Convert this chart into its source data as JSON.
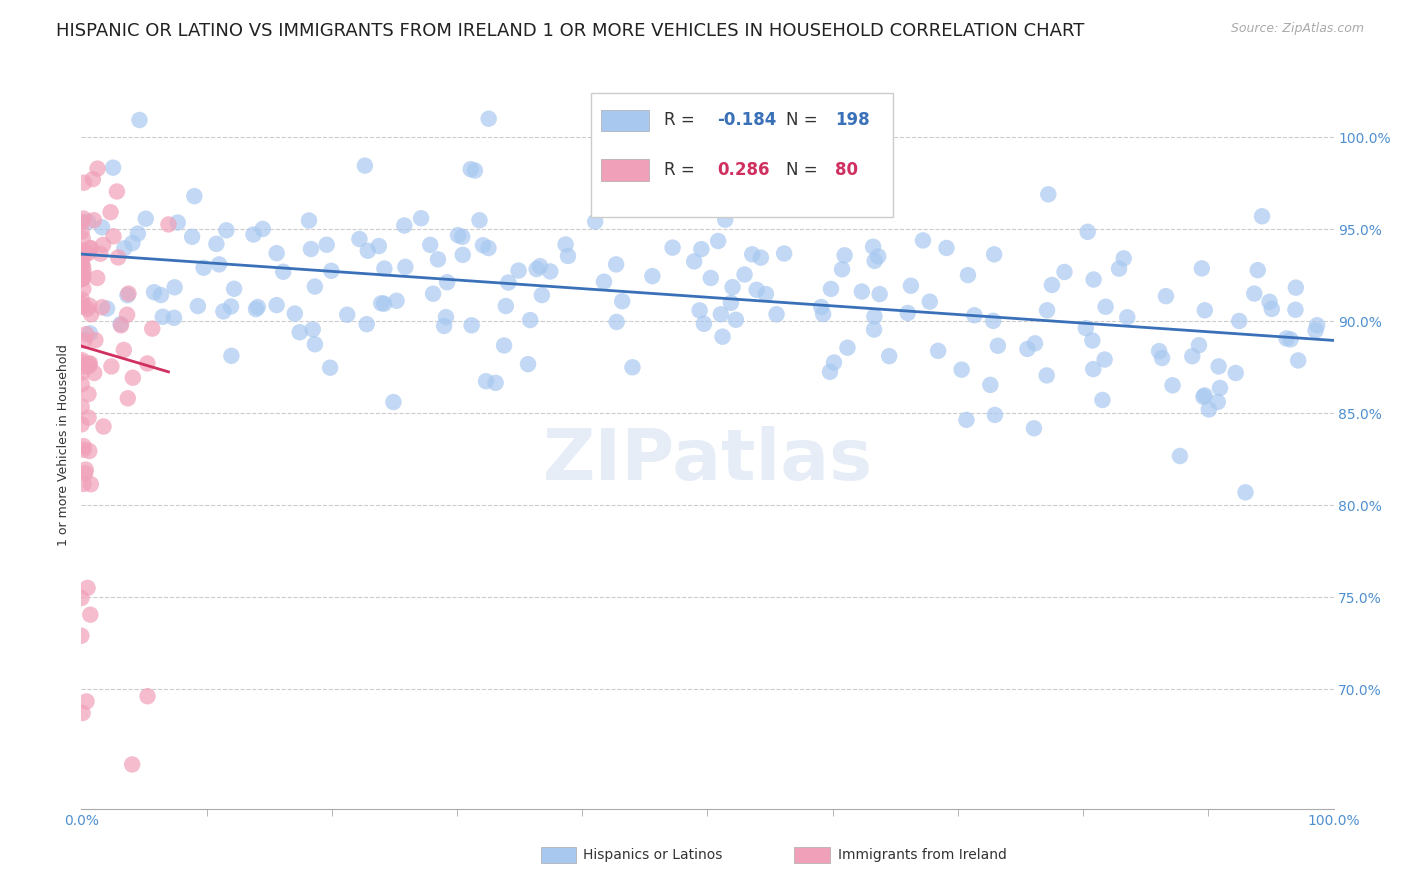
{
  "title": "HISPANIC OR LATINO VS IMMIGRANTS FROM IRELAND 1 OR MORE VEHICLES IN HOUSEHOLD CORRELATION CHART",
  "source": "Source: ZipAtlas.com",
  "ylabel": "1 or more Vehicles in Household",
  "blue_R": "-0.184",
  "blue_N": "198",
  "pink_R": "0.286",
  "pink_N": "80",
  "blue_color": "#a8c8f0",
  "pink_color": "#f0a0b8",
  "blue_line_color": "#3a70b8",
  "pink_line_color": "#d03060",
  "legend_label_blue": "Hispanics or Latinos",
  "legend_label_pink": "Immigrants from Ireland",
  "watermark": "ZIPatlas",
  "tick_color": "#5090d0",
  "y_ticks": [
    0.7,
    0.75,
    0.8,
    0.85,
    0.9,
    0.95,
    1.0
  ],
  "y_tick_labels": [
    "70.0%",
    "75.0%",
    "80.0%",
    "85.0%",
    "90.0%",
    "95.0%",
    "100.0%"
  ],
  "x_tick_labels": [
    "0.0%",
    "100.0%"
  ],
  "title_fontsize": 13,
  "axis_label_fontsize": 9,
  "tick_fontsize": 10,
  "background_color": "#ffffff",
  "blue_seed": 42,
  "pink_seed": 15,
  "x_min": 0.0,
  "x_max": 1.0,
  "y_min": 0.635,
  "y_max": 1.03
}
